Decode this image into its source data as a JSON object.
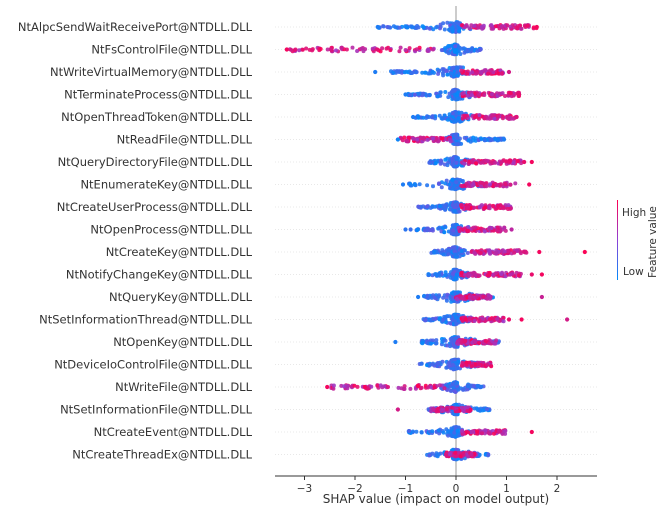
{
  "chart_data": {
    "type": "scatter",
    "subtype": "shap-beeswarm-summary",
    "xlabel": "SHAP value (impact on model output)",
    "xlim": [
      -3.6,
      2.85
    ],
    "xticks": [
      -3,
      -2,
      -1,
      0,
      1,
      2
    ],
    "xtick_labels": [
      "−3",
      "−2",
      "−1",
      "0",
      "1",
      "2"
    ],
    "colorbar": {
      "label": "Feature value",
      "high": "High",
      "low": "Low",
      "low_color": "#008bfb",
      "high_color": "#ff0051"
    },
    "features": [
      {
        "name": "NtAlpcSendWaitReceivePort@NTDLL.DLL",
        "low_range": [
          -1.55,
          0.3
        ],
        "high_range": [
          0.1,
          1.6
        ],
        "outliers": [
          [
            -1.55,
            0.1
          ],
          [
            1.6,
            0.95
          ]
        ]
      },
      {
        "name": "NtFsControlFile@NTDLL.DLL",
        "low_range": [
          -0.3,
          0.5
        ],
        "high_range": [
          -3.3,
          -0.3
        ],
        "outliers": [
          [
            -3.35,
            0.95
          ],
          [
            -0.55,
            0.6
          ]
        ]
      },
      {
        "name": "NtWriteVirtualMemory@NTDLL.DLL",
        "low_range": [
          -1.3,
          0.2
        ],
        "high_range": [
          0.1,
          0.95
        ],
        "outliers": [
          [
            -1.6,
            0.1
          ],
          [
            1.05,
            0.8
          ]
        ]
      },
      {
        "name": "NtTerminateProcess@NTDLL.DLL",
        "low_range": [
          -0.95,
          0.3
        ],
        "high_range": [
          0.1,
          1.25
        ],
        "outliers": [
          [
            -1.0,
            0.1
          ],
          [
            1.25,
            0.9
          ]
        ]
      },
      {
        "name": "NtOpenThreadToken@NTDLL.DLL",
        "low_range": [
          -0.8,
          0.3
        ],
        "high_range": [
          0.1,
          1.2
        ],
        "outliers": [
          [
            -0.85,
            0.1
          ],
          [
            1.2,
            0.85
          ]
        ]
      },
      {
        "name": "NtReadFile@NTDLL.DLL",
        "low_range": [
          -0.2,
          0.95
        ],
        "high_range": [
          -1.1,
          -0.1
        ],
        "outliers": [
          [
            -1.15,
            0.05
          ],
          [
            0.95,
            0.1
          ]
        ]
      },
      {
        "name": "NtQueryDirectoryFile@NTDLL.DLL",
        "low_range": [
          -0.55,
          0.3
        ],
        "high_range": [
          0.1,
          1.3
        ],
        "outliers": [
          [
            1.35,
            0.9
          ],
          [
            1.5,
            0.95
          ]
        ]
      },
      {
        "name": "NtEnumerateKey@NTDLL.DLL",
        "low_range": [
          -0.95,
          0.8
        ],
        "high_range": [
          0.1,
          1.2
        ],
        "outliers": [
          [
            -1.05,
            0.1
          ],
          [
            1.45,
            0.95
          ]
        ]
      },
      {
        "name": "NtCreateUserProcess@NTDLL.DLL",
        "low_range": [
          -0.75,
          0.2
        ],
        "high_range": [
          0.1,
          1.1
        ],
        "outliers": []
      },
      {
        "name": "NtOpenProcess@NTDLL.DLL",
        "low_range": [
          -0.8,
          0.3
        ],
        "high_range": [
          0.05,
          1.0
        ],
        "outliers": [
          [
            -1.0,
            0.15
          ],
          [
            -0.9,
            0.2
          ],
          [
            1.1,
            0.7
          ]
        ]
      },
      {
        "name": "NtCreateKey@NTDLL.DLL",
        "low_range": [
          -0.5,
          0.25
        ],
        "high_range": [
          0.3,
          1.4
        ],
        "outliers": [
          [
            1.65,
            0.95
          ],
          [
            2.55,
            0.98
          ]
        ]
      },
      {
        "name": "NtNotifyChangeKey@NTDLL.DLL",
        "low_range": [
          -0.55,
          0.25
        ],
        "high_range": [
          0.1,
          1.3
        ],
        "outliers": [
          [
            1.5,
            0.9
          ],
          [
            1.7,
            0.95
          ]
        ]
      },
      {
        "name": "NtQueryKey@NTDLL.DLL",
        "low_range": [
          -0.65,
          0.8
        ],
        "high_range": [
          0.0,
          0.7
        ],
        "outliers": [
          [
            -0.75,
            0.1
          ],
          [
            1.7,
            0.75
          ]
        ]
      },
      {
        "name": "NtSetInformationThread@NTDLL.DLL",
        "low_range": [
          -0.65,
          0.3
        ],
        "high_range": [
          0.1,
          0.95
        ],
        "outliers": [
          [
            1.05,
            0.9
          ],
          [
            1.3,
            0.95
          ],
          [
            2.2,
            0.8
          ]
        ]
      },
      {
        "name": "NtOpenKey@NTDLL.DLL",
        "low_range": [
          -0.7,
          0.85
        ],
        "high_range": [
          0.0,
          0.8
        ],
        "outliers": [
          [
            -1.2,
            0.1
          ]
        ]
      },
      {
        "name": "NtDeviceIoControlFile@NTDLL.DLL",
        "low_range": [
          -0.75,
          0.55
        ],
        "high_range": [
          0.1,
          0.7
        ],
        "outliers": []
      },
      {
        "name": "NtWriteFile@NTDLL.DLL",
        "low_range": [
          -0.3,
          0.55
        ],
        "high_range": [
          -2.5,
          -0.2
        ],
        "outliers": [
          [
            -2.55,
            0.95
          ]
        ]
      },
      {
        "name": "NtSetInformationFile@NTDLL.DLL",
        "low_range": [
          -0.55,
          0.7
        ],
        "high_range": [
          -0.5,
          0.3
        ],
        "outliers": [
          [
            -1.15,
            0.8
          ]
        ]
      },
      {
        "name": "NtCreateEvent@NTDLL.DLL",
        "low_range": [
          -0.95,
          0.3
        ],
        "high_range": [
          0.1,
          1.0
        ],
        "outliers": [
          [
            1.5,
            0.95
          ]
        ]
      },
      {
        "name": "NtCreateThreadEx@NTDLL.DLL",
        "low_range": [
          -0.6,
          0.65
        ],
        "high_range": [
          -0.2,
          0.4
        ],
        "outliers": []
      }
    ]
  }
}
